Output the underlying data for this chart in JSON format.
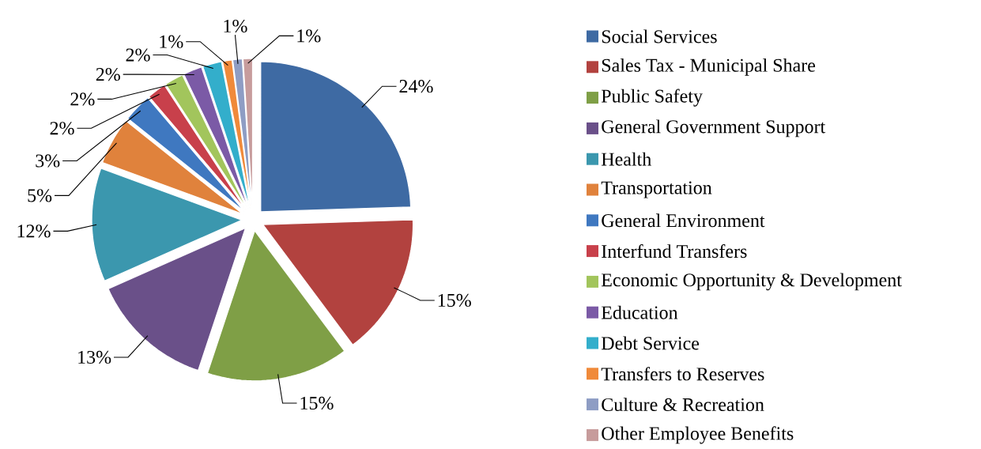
{
  "chart_data": {
    "type": "pie",
    "categories": [
      "Social Services",
      "Sales Tax - Municipal Share",
      "Public Safety",
      "General Government Support",
      "Health",
      "Transportation",
      "General Environment",
      "Interfund Transfers",
      "Economic Opportunity & Development",
      "Education",
      "Debt Service",
      "Transfers to Reserves",
      "Culture & Recreation",
      "Other Employee Benefits"
    ],
    "values": [
      24,
      15,
      15,
      13,
      12,
      5,
      3,
      2,
      2,
      2,
      2,
      1,
      1,
      1
    ],
    "colors": [
      "#3e6aa3",
      "#b2423f",
      "#7f9f46",
      "#6a5089",
      "#3b97ae",
      "#e0823c",
      "#3f78c0",
      "#c8404b",
      "#a2c55c",
      "#7b5aa6",
      "#33aecb",
      "#f08a3a",
      "#8e9dc4",
      "#c79c9c"
    ],
    "value_labels": [
      "24%",
      "15%",
      "15%",
      "13%",
      "12%",
      "5%",
      "3%",
      "2%",
      "2%",
      "2%",
      "2%",
      "1%",
      "1%",
      "1%"
    ],
    "legend": "right"
  }
}
